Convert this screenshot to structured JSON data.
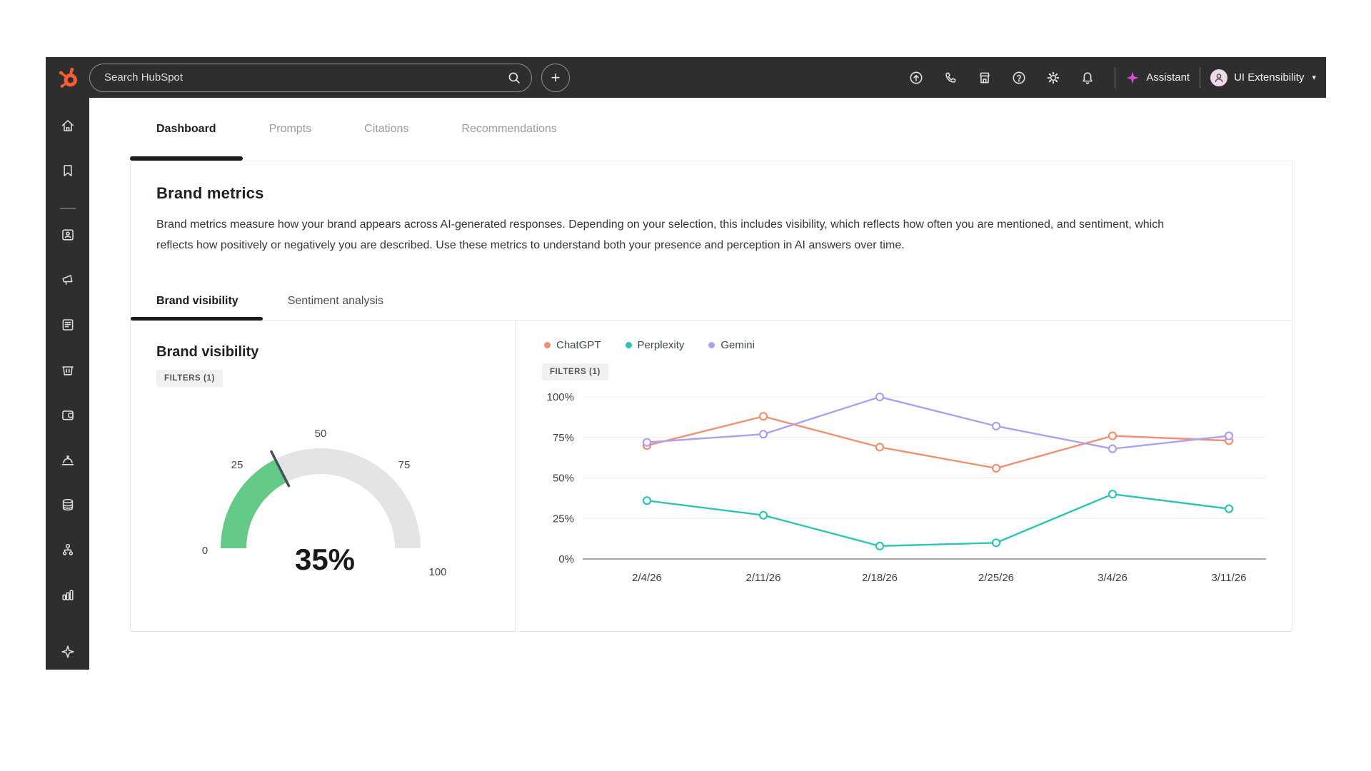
{
  "topbar": {
    "search": {
      "placeholder": "Search HubSpot"
    },
    "create_button_label": "+",
    "icons": [
      "arrow-up-circle",
      "calling",
      "marketplace",
      "help",
      "settings",
      "notifications"
    ],
    "assistant_label": "Assistant",
    "user_menu": {
      "label": "UI Extensibility"
    },
    "brand_color": "#ff5c35",
    "assistant_color": "#e34bd2"
  },
  "sidebar": {
    "icons": [
      "home",
      "bookmarks",
      "contacts",
      "marketing",
      "content",
      "commerce",
      "payments",
      "service",
      "data",
      "automations",
      "reporting",
      "ai-assistant"
    ]
  },
  "nav_tabs": {
    "items": [
      {
        "label": "Dashboard"
      },
      {
        "label": "Prompts"
      },
      {
        "label": "Citations"
      },
      {
        "label": "Recommendations"
      }
    ],
    "active_index": 0
  },
  "card": {
    "title": "Brand metrics",
    "description": "Brand metrics measure how your brand appears across AI-generated responses. Depending on your selection, this includes visibility, which reflects how often you are mentioned, and sentiment, which reflects how positively or negatively you are described. Use these metrics to understand both your presence and perception in AI answers over time.",
    "subtabs": [
      {
        "label": "Brand visibility"
      },
      {
        "label": "Sentiment analysis"
      }
    ],
    "active_subtab_index": 0,
    "left_panel": {
      "title": "Brand visibility",
      "filters_badge": "FILTERS (1)"
    },
    "right_panel": {
      "filters_badge": "FILTERS (1)"
    }
  },
  "chart_data": [
    {
      "type": "gauge",
      "title": "Brand visibility",
      "value": 35,
      "min": 0,
      "max": 100,
      "display_value": "35%",
      "ticks": [
        0,
        25,
        50,
        75,
        100
      ],
      "color": "#65c988",
      "track_color": "#e4e4e4",
      "needle_color": "#45505b"
    },
    {
      "type": "line",
      "x": [
        "2/4/26",
        "2/11/26",
        "2/18/26",
        "2/25/26",
        "3/4/26",
        "3/11/26"
      ],
      "series": [
        {
          "name": "ChatGPT",
          "color": "#f58e6f",
          "values": [
            70,
            88,
            69,
            56,
            76,
            73
          ]
        },
        {
          "name": "Perplexity",
          "color": "#2ec4b6",
          "values": [
            36,
            27,
            8,
            10,
            40,
            31
          ]
        },
        {
          "name": "Gemini",
          "color": "#ad9ff1",
          "values": [
            72,
            77,
            100,
            82,
            68,
            76
          ]
        }
      ],
      "ylim": [
        0,
        100
      ],
      "ytick_labels": [
        "0%",
        "25%",
        "50%",
        "75%",
        "100%"
      ],
      "grid": "horizontal",
      "legend_position": "top-left"
    }
  ]
}
